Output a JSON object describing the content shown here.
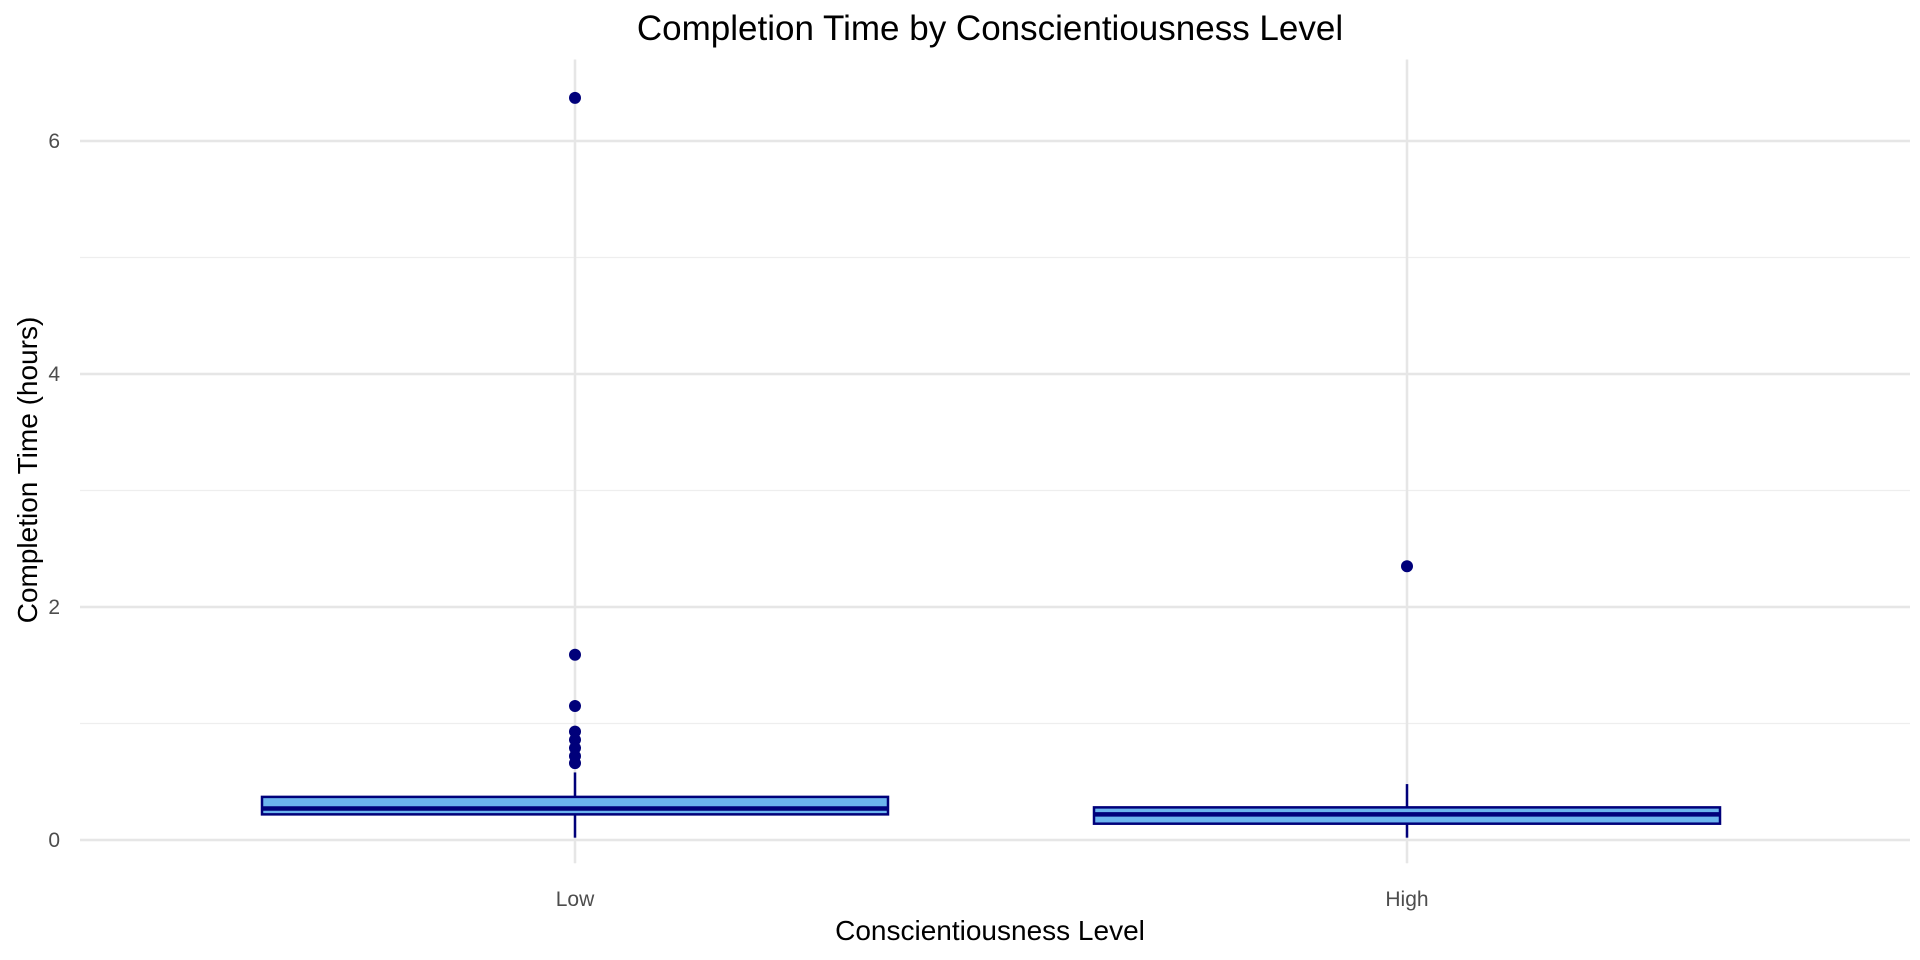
{
  "chart_data": {
    "type": "box",
    "title": "Completion Time by Conscientiousness Level",
    "xlabel": "Conscientiousness Level",
    "ylabel": "Completion Time (hours)",
    "categories": [
      "Low",
      "High"
    ],
    "ylim": [
      -0.2,
      6.7
    ],
    "yticks": [
      0,
      2,
      4,
      6
    ],
    "yticks_minor": [
      1,
      3,
      5
    ],
    "grid": true,
    "boxes": [
      {
        "category": "Low",
        "min": 0.02,
        "q1": 0.22,
        "median": 0.27,
        "q3": 0.37,
        "max": 0.58,
        "outliers": [
          6.37,
          1.59,
          1.15,
          0.93,
          0.86,
          0.79,
          0.72,
          0.66
        ]
      },
      {
        "category": "High",
        "min": 0.02,
        "q1": 0.14,
        "median": 0.22,
        "q3": 0.28,
        "max": 0.48,
        "outliers": [
          2.35
        ]
      }
    ],
    "colors": {
      "box_fill": "#6CB4EE",
      "box_stroke": "#00007A",
      "outlier": "#00007A",
      "grid_major": "#e6e6e6",
      "grid_minor": "#eeeeee",
      "tick_text": "#4d4d4d"
    }
  }
}
